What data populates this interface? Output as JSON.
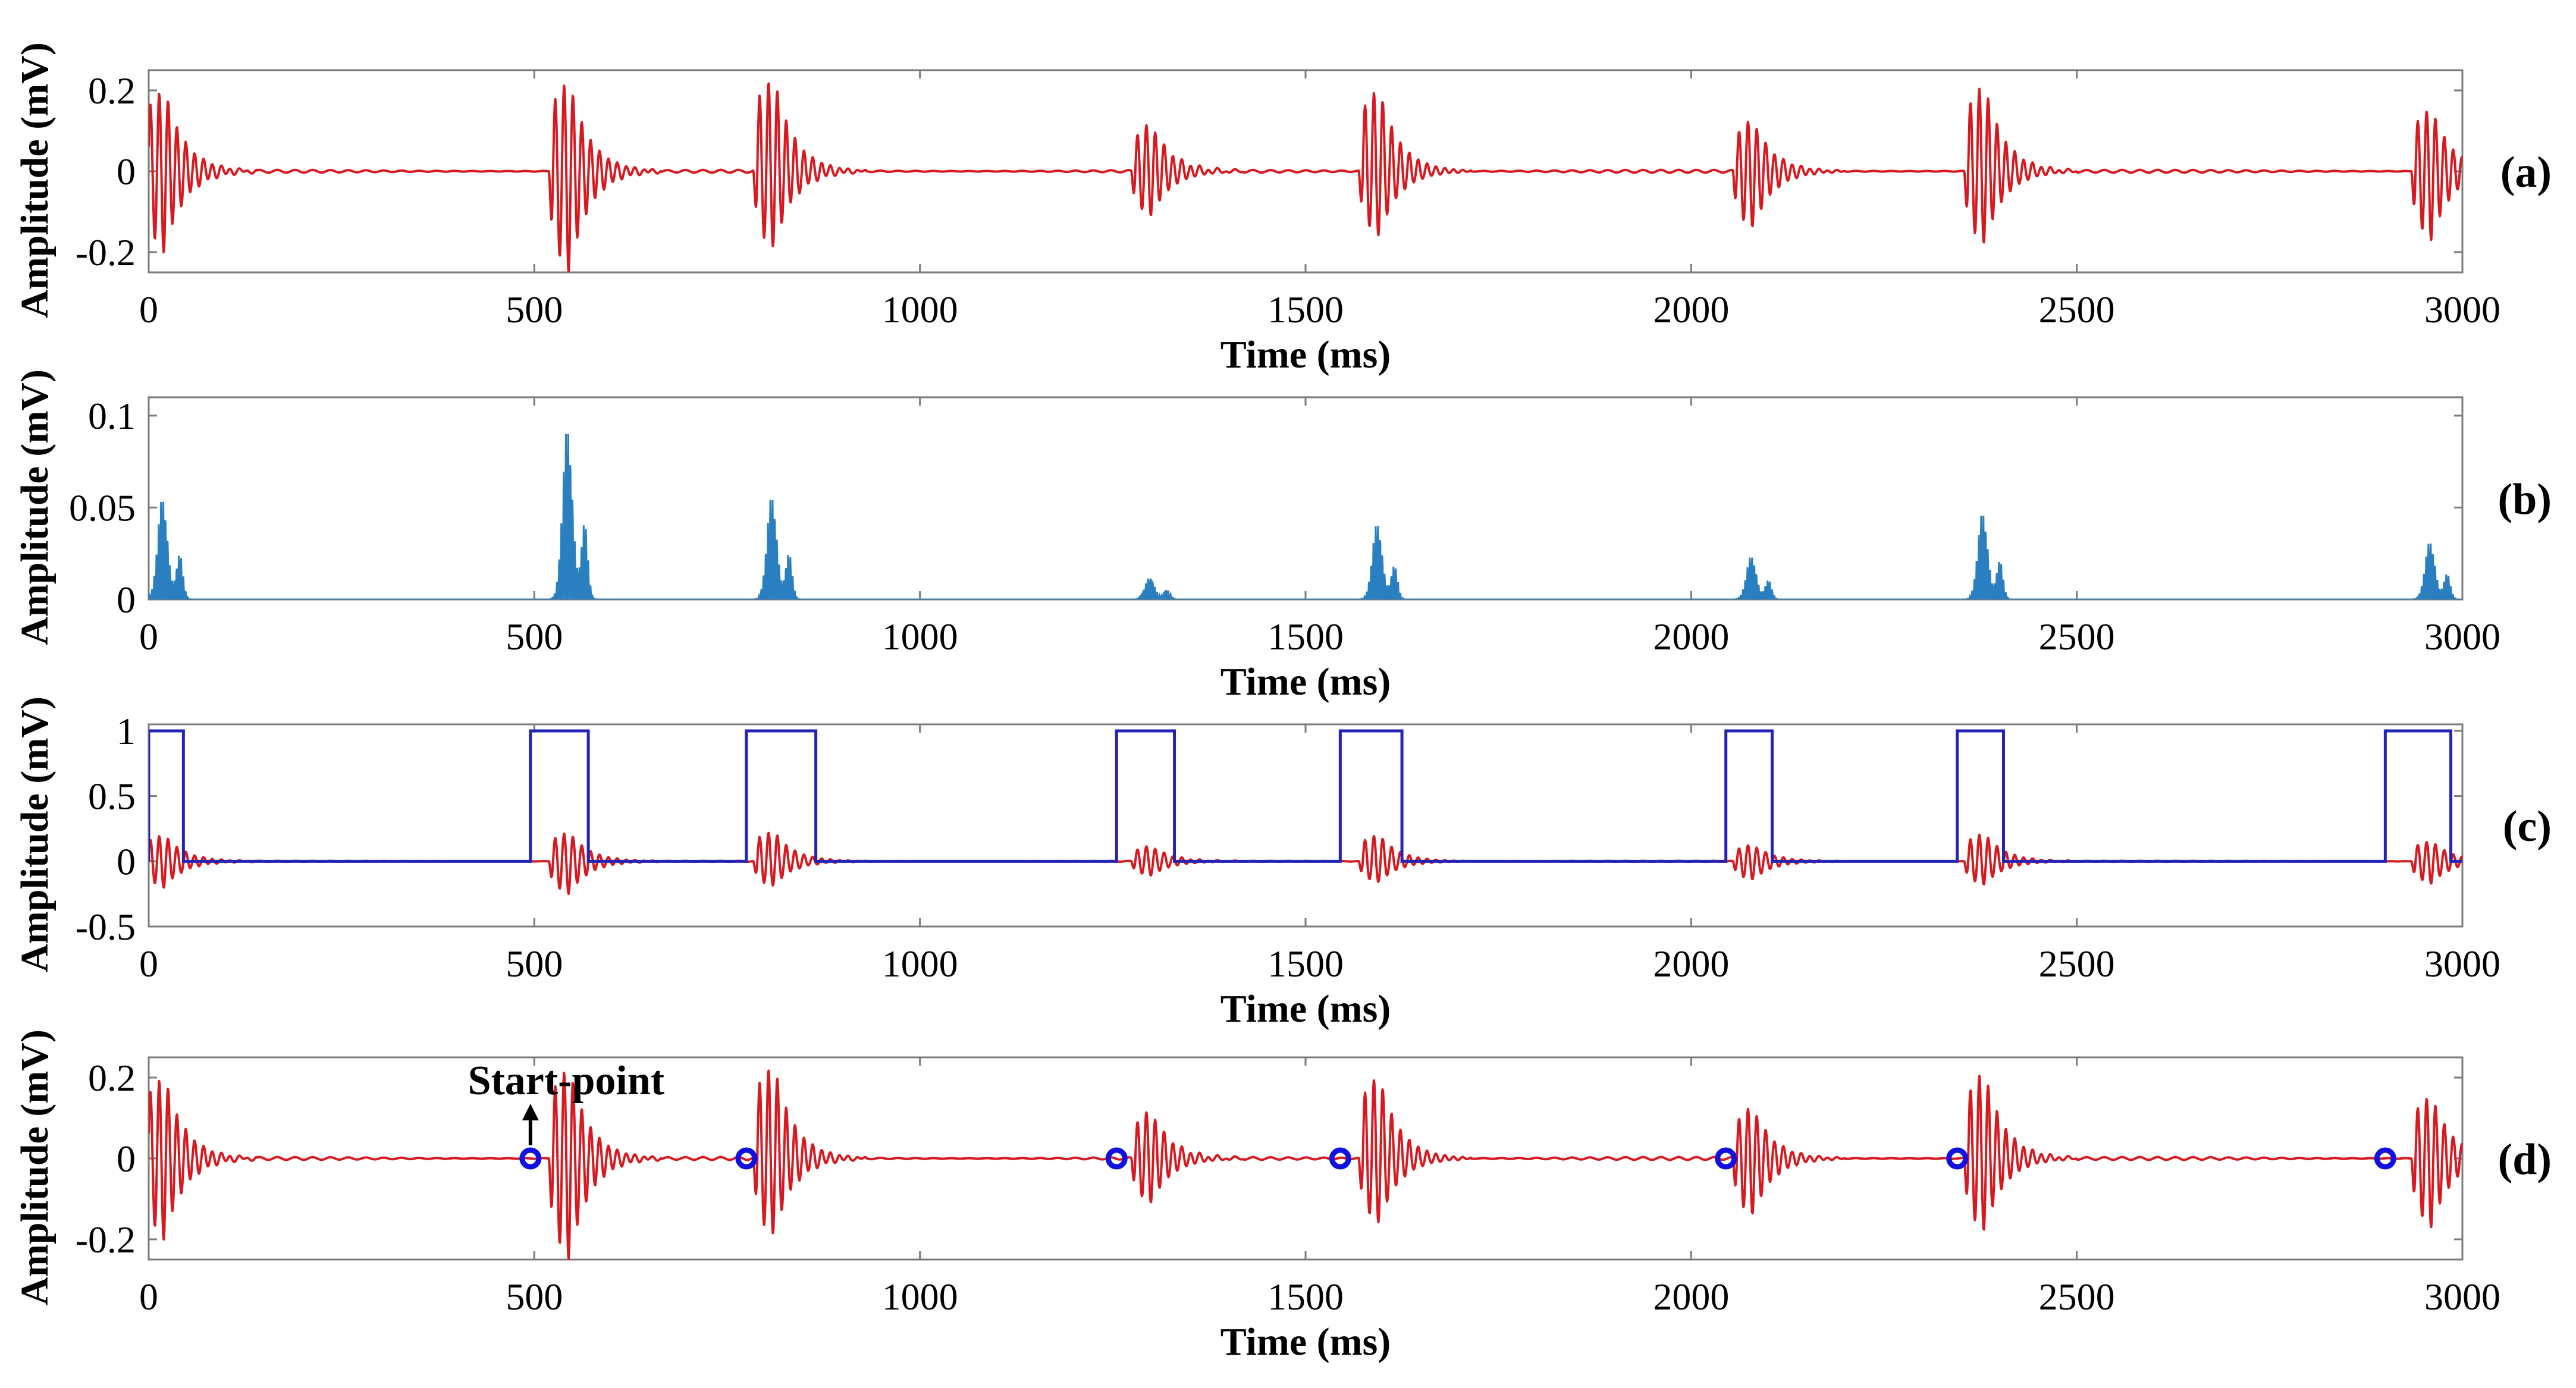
{
  "colors": {
    "raw_signal": "#d71920",
    "envelope": "#2a7fc1",
    "window": "#2424b4",
    "marker": "#1010e0",
    "axes": "#7a7a7a"
  },
  "chart_data": [
    {
      "id": "a",
      "type": "line",
      "panel_label": "(a)",
      "xlabel": "Time (ms)",
      "ylabel": "Amplitude  (mV)",
      "xlim": [
        0,
        3000
      ],
      "ylim": [
        -0.25,
        0.25
      ],
      "xticks": [
        0,
        500,
        1000,
        1500,
        2000,
        2500,
        3000
      ],
      "yticks": [
        0.2,
        0,
        -0.2
      ],
      "ytick_labels": [
        "0.2",
        "0",
        "-0.2"
      ],
      "series": [
        {
          "kind": "oscillation",
          "color_key": "raw_signal",
          "baseline": 0,
          "bursts": [
            {
              "t": 0,
              "peak": 0.21,
              "trough": -0.2
            },
            {
              "t": 525,
              "peak": 0.23,
              "trough": -0.25
            },
            {
              "t": 790,
              "peak": 0.24,
              "trough": -0.19
            },
            {
              "t": 1280,
              "peak": 0.12,
              "trough": -0.11
            },
            {
              "t": 1575,
              "peak": 0.21,
              "trough": -0.16
            },
            {
              "t": 2060,
              "peak": 0.13,
              "trough": -0.14
            },
            {
              "t": 2360,
              "peak": 0.22,
              "trough": -0.18
            },
            {
              "t": 2940,
              "peak": 0.16,
              "trough": -0.17
            }
          ]
        }
      ]
    },
    {
      "id": "b",
      "type": "line",
      "panel_label": "(b)",
      "xlabel": "Time (ms)",
      "ylabel": "Amplitude  (mV)",
      "xlim": [
        0,
        3000
      ],
      "ylim": [
        0,
        0.11
      ],
      "xticks": [
        0,
        500,
        1000,
        1500,
        2000,
        2500,
        3000
      ],
      "yticks": [
        0.1,
        0.05,
        0
      ],
      "ytick_labels": [
        "0.1",
        "0.05",
        "0"
      ],
      "series": [
        {
          "kind": "envelope",
          "color_key": "envelope",
          "baseline": 0,
          "bursts": [
            {
              "t": 0,
              "peak": 0.056
            },
            {
              "t": 525,
              "peak": 0.095
            },
            {
              "t": 790,
              "peak": 0.057
            },
            {
              "t": 1280,
              "peak": 0.012
            },
            {
              "t": 1575,
              "peak": 0.042
            },
            {
              "t": 2060,
              "peak": 0.024
            },
            {
              "t": 2360,
              "peak": 0.048
            },
            {
              "t": 2940,
              "peak": 0.032
            }
          ]
        }
      ]
    },
    {
      "id": "c",
      "type": "line",
      "panel_label": "(c)",
      "xlabel": "Time (ms)",
      "ylabel": "Amplitude  (mV)",
      "xlim": [
        0,
        3000
      ],
      "ylim": [
        -0.5,
        1.05
      ],
      "xticks": [
        0,
        500,
        1000,
        1500,
        2000,
        2500,
        3000
      ],
      "yticks": [
        1,
        0.5,
        0,
        -0.5
      ],
      "ytick_labels": [
        "1",
        "0.5",
        "0",
        "-0.5"
      ],
      "series": [
        {
          "kind": "oscillation",
          "color_key": "raw_signal",
          "baseline": 0,
          "bursts": [
            {
              "t": 0,
              "peak": 0.21,
              "trough": -0.2
            },
            {
              "t": 525,
              "peak": 0.23,
              "trough": -0.25
            },
            {
              "t": 790,
              "peak": 0.24,
              "trough": -0.19
            },
            {
              "t": 1280,
              "peak": 0.12,
              "trough": -0.11
            },
            {
              "t": 1575,
              "peak": 0.21,
              "trough": -0.16
            },
            {
              "t": 2060,
              "peak": 0.13,
              "trough": -0.14
            },
            {
              "t": 2360,
              "peak": 0.22,
              "trough": -0.18
            },
            {
              "t": 2940,
              "peak": 0.16,
              "trough": -0.17
            }
          ]
        },
        {
          "kind": "windows",
          "color_key": "window",
          "low": 0,
          "high": 1,
          "intervals": [
            [
              0,
              45
            ],
            [
              495,
              570
            ],
            [
              775,
              865
            ],
            [
              1255,
              1330
            ],
            [
              1545,
              1625
            ],
            [
              2045,
              2105
            ],
            [
              2345,
              2405
            ],
            [
              2900,
              2985
            ]
          ]
        }
      ]
    },
    {
      "id": "d",
      "type": "line",
      "panel_label": "(d)",
      "xlabel": "Time (ms)",
      "ylabel": "Amplitude  (mV)",
      "xlim": [
        0,
        3000
      ],
      "ylim": [
        -0.25,
        0.25
      ],
      "xticks": [
        0,
        500,
        1000,
        1500,
        2000,
        2500,
        3000
      ],
      "yticks": [
        0.2,
        0,
        -0.2
      ],
      "ytick_labels": [
        "0.2",
        "0",
        "-0.2"
      ],
      "annotation": {
        "text": "Start-point",
        "x": 495,
        "y": 0
      },
      "series": [
        {
          "kind": "oscillation",
          "color_key": "raw_signal",
          "baseline": 0,
          "bursts": [
            {
              "t": 0,
              "peak": 0.21,
              "trough": -0.2
            },
            {
              "t": 525,
              "peak": 0.23,
              "trough": -0.25
            },
            {
              "t": 790,
              "peak": 0.24,
              "trough": -0.19
            },
            {
              "t": 1280,
              "peak": 0.12,
              "trough": -0.11
            },
            {
              "t": 1575,
              "peak": 0.21,
              "trough": -0.16
            },
            {
              "t": 2060,
              "peak": 0.13,
              "trough": -0.14
            },
            {
              "t": 2360,
              "peak": 0.22,
              "trough": -0.18
            },
            {
              "t": 2940,
              "peak": 0.16,
              "trough": -0.17
            }
          ]
        },
        {
          "kind": "markers",
          "color_key": "marker",
          "points": [
            [
              495,
              0
            ],
            [
              775,
              0
            ],
            [
              1255,
              0
            ],
            [
              1545,
              0
            ],
            [
              2045,
              0
            ],
            [
              2345,
              0
            ],
            [
              2900,
              0
            ]
          ]
        }
      ]
    }
  ]
}
